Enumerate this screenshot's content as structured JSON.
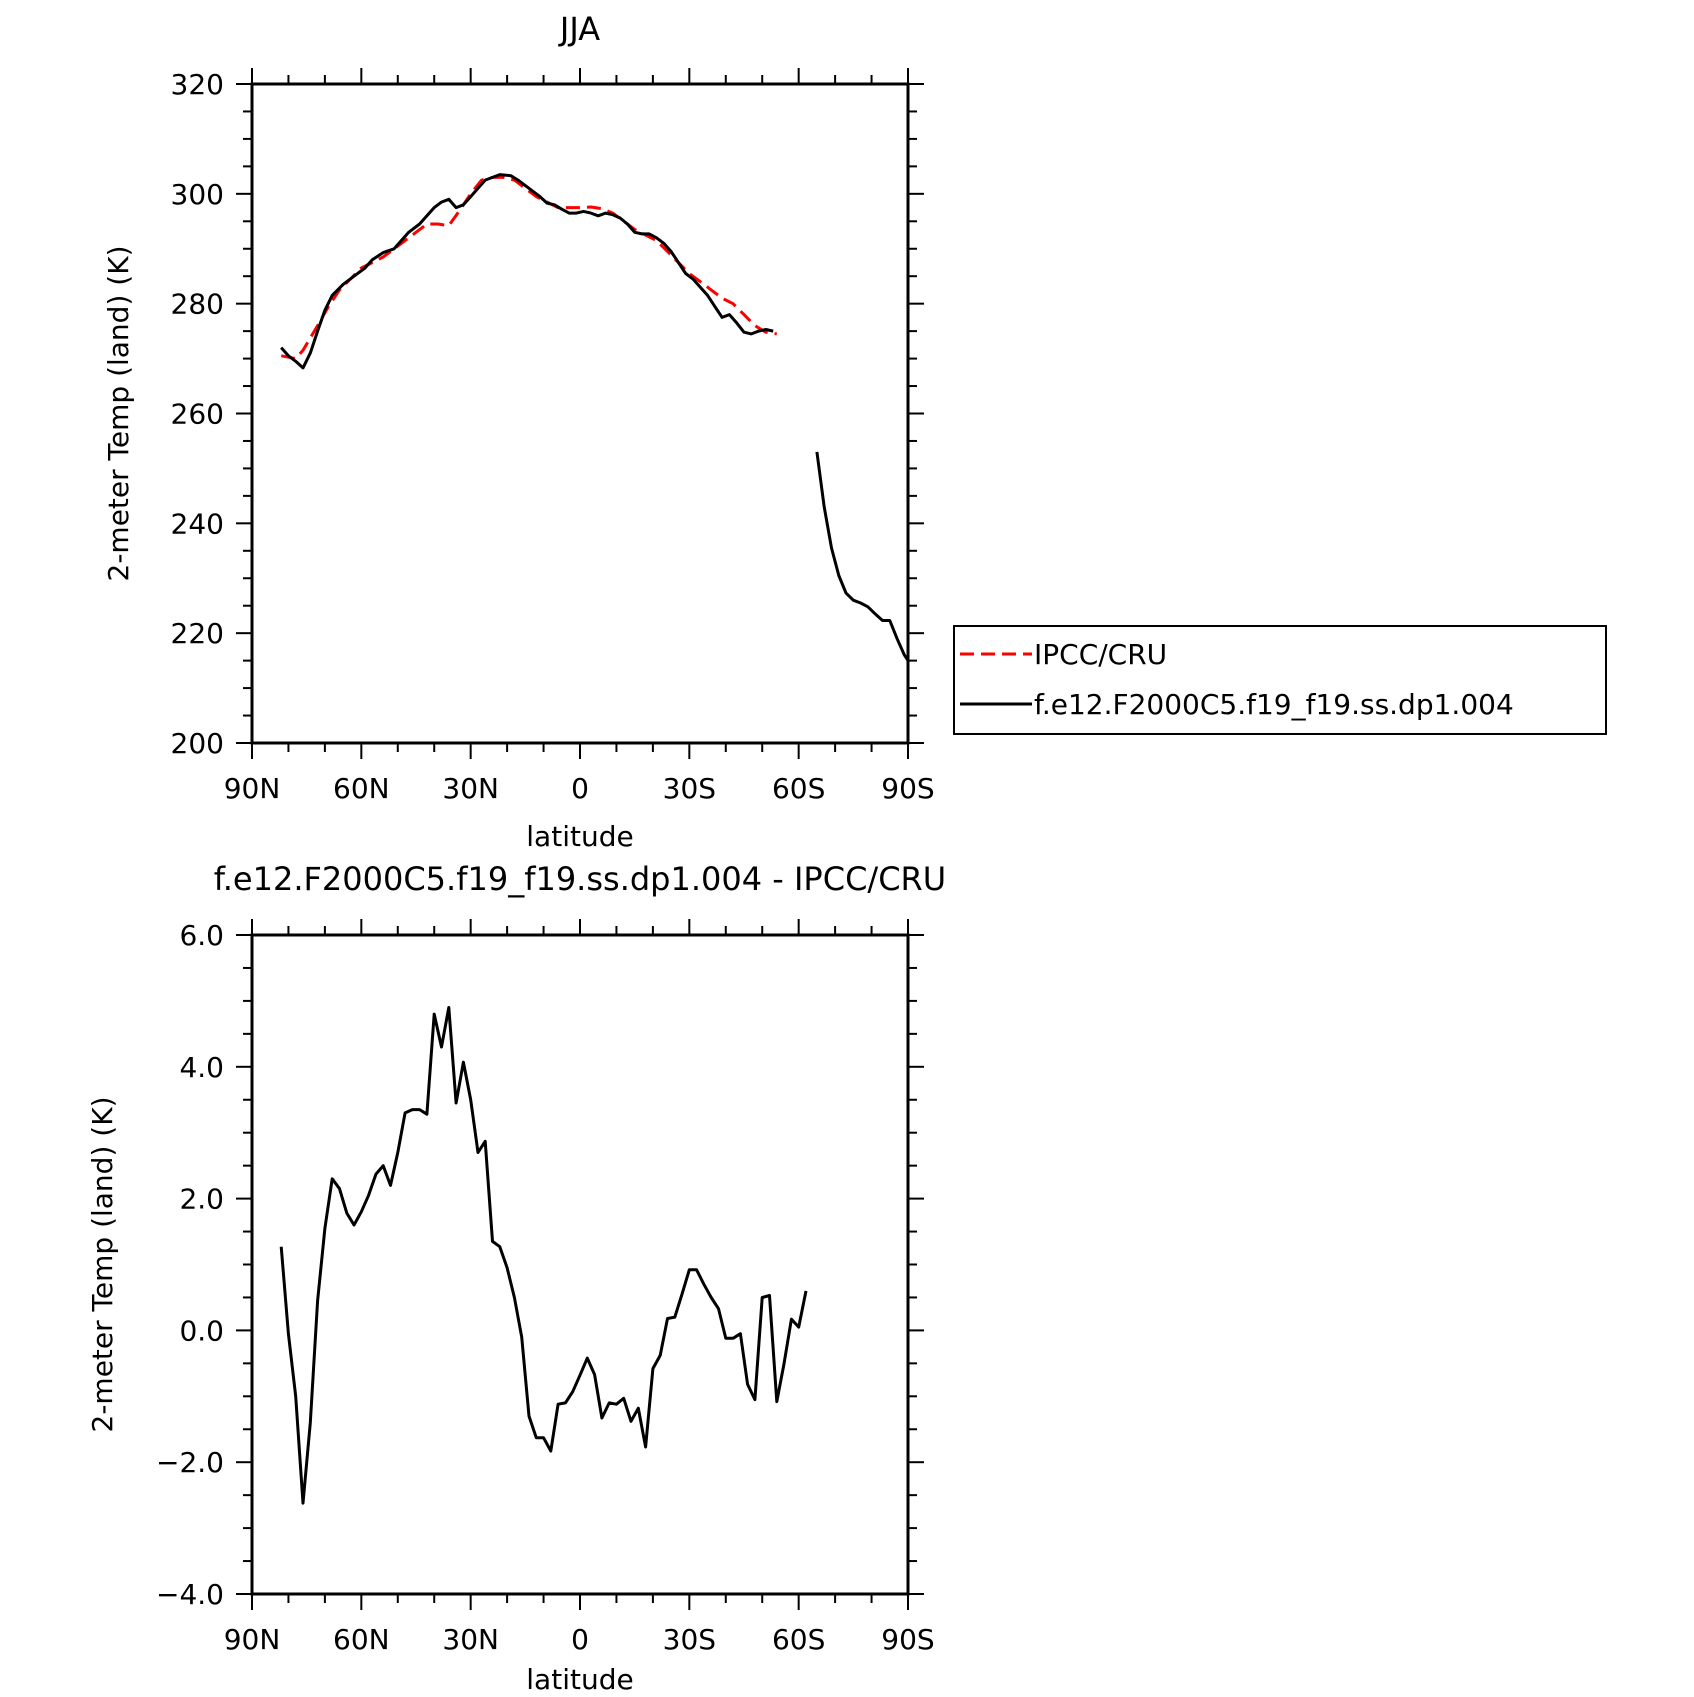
{
  "chart_data": [
    {
      "type": "line",
      "title": "JJA",
      "xlabel": "latitude",
      "ylabel": "2-meter Temp (land) (K)",
      "xlim": [
        90,
        -90
      ],
      "ylim": [
        200,
        320
      ],
      "x_ticks": [
        90,
        60,
        30,
        0,
        -30,
        -60,
        -90
      ],
      "x_tick_labels": [
        "90N",
        "60N",
        "30N",
        "0",
        "30S",
        "60S",
        "90S"
      ],
      "y_ticks": [
        200,
        220,
        240,
        260,
        280,
        300,
        320
      ],
      "y_tick_labels": [
        "200",
        "220",
        "240",
        "260",
        "280",
        "300",
        "320"
      ],
      "legend_position": "right",
      "series": [
        {
          "name": "IPCC/CRU",
          "color": "#ff0000",
          "dash": "dashed",
          "points": [
            [
              82,
              270.5
            ],
            [
              78,
              270
            ],
            [
              76,
              271.5
            ],
            [
              72,
              276
            ],
            [
              69,
              279.5
            ],
            [
              66,
              282.5
            ],
            [
              63,
              284.5
            ],
            [
              60,
              286.5
            ],
            [
              57,
              287.5
            ],
            [
              54,
              288.5
            ],
            [
              51,
              290
            ],
            [
              48,
              291.5
            ],
            [
              45,
              293
            ],
            [
              42,
              294.5
            ],
            [
              39,
              294.5
            ],
            [
              36,
              294.2
            ],
            [
              33,
              297
            ],
            [
              30,
              300
            ],
            [
              27,
              302.5
            ],
            [
              24,
              303
            ],
            [
              21,
              303
            ],
            [
              18,
              302.5
            ],
            [
              15,
              301
            ],
            [
              12,
              299.5
            ],
            [
              9,
              298.5
            ],
            [
              6,
              297.5
            ],
            [
              3,
              297.5
            ],
            [
              0,
              297.5
            ],
            [
              -3,
              297.6
            ],
            [
              -6,
              297.3
            ],
            [
              -9,
              296.5
            ],
            [
              -12,
              295
            ],
            [
              -15,
              293.5
            ],
            [
              -18,
              292.5
            ],
            [
              -21,
              291.5
            ],
            [
              -24,
              289.5
            ],
            [
              -27,
              287.5
            ],
            [
              -30,
              285.5
            ],
            [
              -33,
              284
            ],
            [
              -36,
              282.5
            ],
            [
              -39,
              281
            ],
            [
              -42,
              280
            ],
            [
              -45,
              278
            ],
            [
              -48,
              276
            ],
            [
              -51,
              274.8
            ],
            [
              -54,
              274.5
            ]
          ]
        },
        {
          "name": "f.e12.F2000C5.f19_f19.ss.dp1.004",
          "color": "#000000",
          "dash": "solid",
          "points": [
            [
              82,
              272
            ],
            [
              80,
              270.5
            ],
            [
              78,
              269.5
            ],
            [
              76,
              268.3
            ],
            [
              74,
              271
            ],
            [
              72,
              275
            ],
            [
              70,
              278.8
            ],
            [
              68,
              281.5
            ],
            [
              65,
              283.5
            ],
            [
              62,
              285
            ],
            [
              59,
              286.5
            ],
            [
              57,
              288
            ],
            [
              54,
              289.3
            ],
            [
              51,
              290
            ],
            [
              49,
              291.5
            ],
            [
              47,
              293
            ],
            [
              44,
              294.5
            ],
            [
              42,
              296
            ],
            [
              40,
              297.5
            ],
            [
              38,
              298.5
            ],
            [
              36,
              299
            ],
            [
              34,
              297.5
            ],
            [
              32,
              298
            ],
            [
              30,
              299.5
            ],
            [
              28,
              301
            ],
            [
              26,
              302.5
            ],
            [
              24,
              303
            ],
            [
              22,
              303.5
            ],
            [
              19,
              303.3
            ],
            [
              17,
              302.5
            ],
            [
              15,
              301.5
            ],
            [
              13,
              300.5
            ],
            [
              11,
              299.5
            ],
            [
              9,
              298.3
            ],
            [
              7,
              298
            ],
            [
              5,
              297.2
            ],
            [
              3,
              296.5
            ],
            [
              1,
              296.5
            ],
            [
              -1,
              296.8
            ],
            [
              -3,
              296.5
            ],
            [
              -5,
              296
            ],
            [
              -7,
              296.5
            ],
            [
              -9,
              296.2
            ],
            [
              -11,
              295.6
            ],
            [
              -13,
              294.5
            ],
            [
              -15,
              293
            ],
            [
              -17,
              292.7
            ],
            [
              -19,
              292.7
            ],
            [
              -21,
              292
            ],
            [
              -23,
              291
            ],
            [
              -25,
              289.5
            ],
            [
              -27,
              287.5
            ],
            [
              -29,
              285.5
            ],
            [
              -31,
              284.5
            ],
            [
              -33,
              283
            ],
            [
              -35,
              281.5
            ],
            [
              -37,
              279.5
            ],
            [
              -39,
              277.5
            ],
            [
              -41,
              278
            ],
            [
              -43,
              276.5
            ],
            [
              -45,
              274.8
            ],
            [
              -47,
              274.5
            ],
            [
              -49,
              275
            ],
            [
              -51,
              275.3
            ],
            [
              -53,
              275
            ]
          ],
          "segment2_points": [
            [
              -65,
              253
            ],
            [
              -67,
              243
            ],
            [
              -69,
              235.5
            ],
            [
              -71,
              230.5
            ],
            [
              -73,
              227.3
            ],
            [
              -75,
              226
            ],
            [
              -77,
              225.5
            ],
            [
              -79,
              224.8
            ],
            [
              -81,
              223.5
            ],
            [
              -83,
              222.3
            ],
            [
              -85,
              222.3
            ],
            [
              -87,
              219
            ],
            [
              -89,
              216
            ],
            [
              -90,
              215
            ]
          ]
        }
      ]
    },
    {
      "type": "line",
      "title": "f.e12.F2000C5.f19_f19.ss.dp1.004 - IPCC/CRU",
      "xlabel": "latitude",
      "ylabel": "2-meter Temp (land) (K)",
      "xlim": [
        90,
        -90
      ],
      "ylim": [
        -4,
        6
      ],
      "x_ticks": [
        90,
        60,
        30,
        0,
        -30,
        -60,
        -90
      ],
      "x_tick_labels": [
        "90N",
        "60N",
        "30N",
        "0",
        "30S",
        "60S",
        "90S"
      ],
      "y_ticks": [
        -4,
        -2,
        0,
        2,
        4,
        6
      ],
      "y_tick_labels": [
        "−4.0",
        "−2.0",
        "0.0",
        "2.0",
        "4.0",
        "6.0"
      ],
      "series": [
        {
          "color": "#000000",
          "dash": "solid",
          "points": [
            [
              82,
              1.27
            ],
            [
              80,
              -0.05
            ],
            [
              78,
              -1.0
            ],
            [
              76,
              -2.62
            ],
            [
              74,
              -1.4
            ],
            [
              72,
              0.45
            ],
            [
              70,
              1.55
            ],
            [
              68,
              2.3
            ],
            [
              66,
              2.15
            ],
            [
              64,
              1.78
            ],
            [
              62,
              1.6
            ],
            [
              60,
              1.8
            ],
            [
              58,
              2.05
            ],
            [
              56,
              2.37
            ],
            [
              54,
              2.5
            ],
            [
              52,
              2.2
            ],
            [
              50,
              2.7
            ],
            [
              48,
              3.3
            ],
            [
              46,
              3.35
            ],
            [
              44,
              3.35
            ],
            [
              42,
              3.28
            ],
            [
              40,
              4.8
            ],
            [
              38,
              4.3
            ],
            [
              36,
              4.9
            ],
            [
              34,
              3.45
            ],
            [
              32,
              4.07
            ],
            [
              30,
              3.5
            ],
            [
              28,
              2.7
            ],
            [
              26,
              2.87
            ],
            [
              24,
              1.35
            ],
            [
              22,
              1.27
            ],
            [
              20,
              0.95
            ],
            [
              18,
              0.5
            ],
            [
              16,
              -0.1
            ],
            [
              14,
              -1.3
            ],
            [
              12,
              -1.63
            ],
            [
              10,
              -1.63
            ],
            [
              8,
              -1.83
            ],
            [
              6,
              -1.12
            ],
            [
              4,
              -1.1
            ],
            [
              2,
              -0.93
            ],
            [
              0,
              -0.68
            ],
            [
              -2,
              -0.42
            ],
            [
              -4,
              -0.67
            ],
            [
              -6,
              -1.33
            ],
            [
              -8,
              -1.1
            ],
            [
              -10,
              -1.12
            ],
            [
              -12,
              -1.03
            ],
            [
              -14,
              -1.38
            ],
            [
              -16,
              -1.18
            ],
            [
              -18,
              -1.77
            ],
            [
              -20,
              -0.58
            ],
            [
              -22,
              -0.38
            ],
            [
              -24,
              0.18
            ],
            [
              -26,
              0.2
            ],
            [
              -28,
              0.55
            ],
            [
              -30,
              0.92
            ],
            [
              -32,
              0.92
            ],
            [
              -34,
              0.7
            ],
            [
              -36,
              0.5
            ],
            [
              -38,
              0.33
            ],
            [
              -40,
              -0.12
            ],
            [
              -42,
              -0.12
            ],
            [
              -44,
              -0.05
            ],
            [
              -46,
              -0.82
            ],
            [
              -48,
              -1.05
            ],
            [
              -50,
              0.5
            ],
            [
              -52,
              0.53
            ],
            [
              -54,
              -1.08
            ],
            [
              -56,
              -0.5
            ],
            [
              -58,
              0.17
            ],
            [
              -60,
              0.05
            ],
            [
              -62,
              0.6
            ]
          ]
        }
      ]
    }
  ]
}
